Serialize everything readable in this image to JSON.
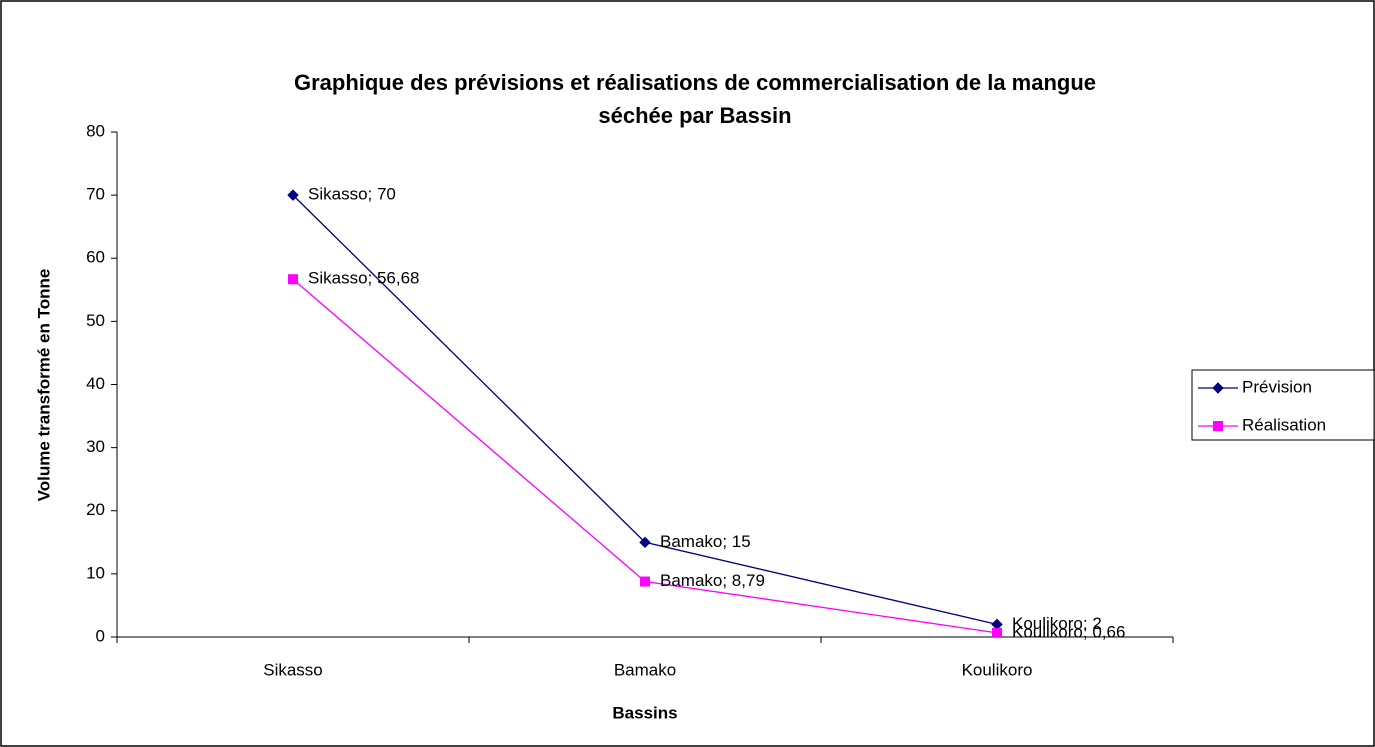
{
  "chart_data": {
    "type": "line",
    "title": [
      "Graphique des prévisions et réalisations de commercialisation de la mangue",
      "séchée par Bassin"
    ],
    "x_label": "Bassins",
    "y_label": "Volume transformé en Tonne",
    "categories": [
      "Sikasso",
      "Bamako",
      "Koulikoro"
    ],
    "series": [
      {
        "name": "Prévision",
        "color": "#000080",
        "marker": "diamond",
        "values": [
          70,
          15,
          2
        ],
        "value_labels": [
          "Sikasso; 70",
          "Bamako; 15",
          "Koulikoro; 2"
        ]
      },
      {
        "name": "Réalisation",
        "color": "#ff00ff",
        "marker": "square",
        "values": [
          56.68,
          8.79,
          0.66
        ],
        "value_labels": [
          "Sikasso; 56,68",
          "Bamako; 8,79",
          "Koulikoro; 0,66"
        ]
      }
    ],
    "ylim": [
      0,
      80
    ],
    "yticks": [
      0,
      10,
      20,
      30,
      40,
      50,
      60,
      70,
      80
    ],
    "grid": false,
    "legend": "right"
  }
}
